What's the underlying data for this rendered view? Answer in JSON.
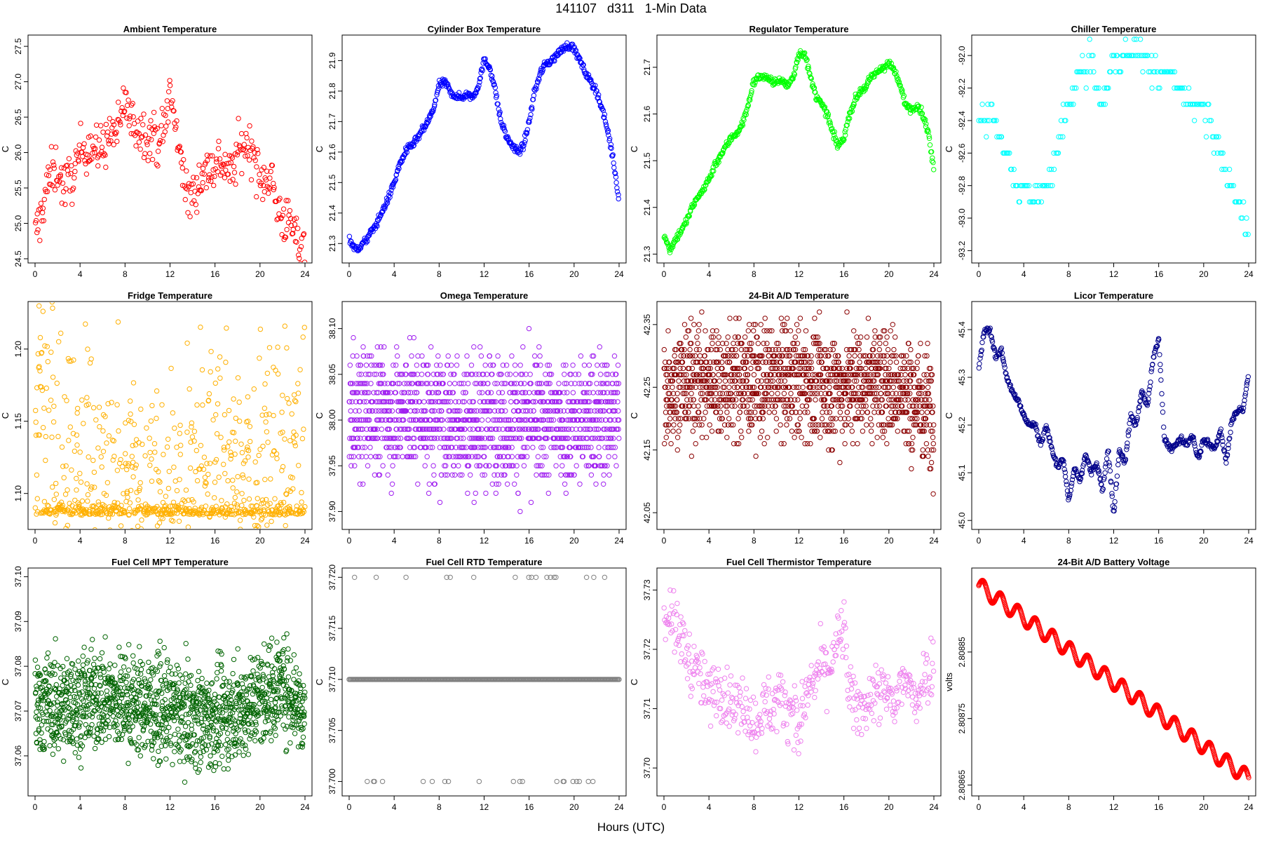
{
  "figure": {
    "suptitle": "141107   d311   1-Min Data",
    "xlabel": "Hours (UTC)"
  },
  "chart_data": [
    {
      "type": "scatter",
      "title": "Ambient Temperature",
      "ylabel": "C",
      "color": "#ff0000",
      "xlim": [
        0,
        24
      ],
      "ylim": [
        24.5,
        27.6
      ],
      "xticks": [
        0,
        4,
        8,
        12,
        16,
        20,
        24
      ],
      "yticks": [
        24.5,
        25.0,
        25.5,
        26.0,
        26.5,
        27.0,
        27.5
      ],
      "x": [
        0,
        0.5,
        1,
        1.5,
        2,
        2.5,
        3,
        3.5,
        4,
        4.5,
        5,
        5.5,
        6,
        6.5,
        7,
        7.5,
        8,
        8.5,
        9,
        9.5,
        10,
        10.5,
        11,
        11.5,
        12,
        12.5,
        13,
        13.5,
        14,
        14.5,
        15,
        15.5,
        16,
        16.5,
        17,
        17.5,
        18,
        18.5,
        19,
        19.5,
        20,
        20.5,
        21,
        21.5,
        22,
        22.5,
        23,
        23.5,
        24
      ],
      "y": [
        24.8,
        25.1,
        25.5,
        25.7,
        25.8,
        25.5,
        25.6,
        25.7,
        26.0,
        26.1,
        26.1,
        26.0,
        26.1,
        26.2,
        26.3,
        26.3,
        26.8,
        26.4,
        26.4,
        26.3,
        26.3,
        26.2,
        26.2,
        26.3,
        26.9,
        26.3,
        26.0,
        25.3,
        25.4,
        25.6,
        25.7,
        25.8,
        25.8,
        25.9,
        25.8,
        25.7,
        26.0,
        26.1,
        26.1,
        26.0,
        25.5,
        25.7,
        25.7,
        25.2,
        25.1,
        25.0,
        24.9,
        24.7,
        24.7
      ],
      "spread": 0.35,
      "n": 8
    },
    {
      "type": "scatter",
      "title": "Cylinder Box Temperature",
      "ylabel": "C",
      "color": "#0000ff",
      "xlim": [
        0,
        24
      ],
      "ylim": [
        21.25,
        21.97
      ],
      "xticks": [
        0,
        4,
        8,
        12,
        16,
        20,
        24
      ],
      "yticks": [
        21.3,
        21.4,
        21.5,
        21.6,
        21.7,
        21.8,
        21.9
      ],
      "x": [
        0,
        0.5,
        1,
        1.5,
        2,
        2.5,
        3,
        3.5,
        4,
        4.5,
        5,
        5.5,
        6,
        6.5,
        7,
        7.5,
        8,
        8.5,
        9,
        9.5,
        10,
        10.5,
        11,
        11.5,
        12,
        12.5,
        13,
        13.5,
        14,
        14.5,
        15,
        15.5,
        16,
        16.5,
        17,
        17.5,
        18,
        18.5,
        19,
        19.5,
        20,
        20.5,
        21,
        21.5,
        22,
        22.5,
        23,
        23.5,
        24
      ],
      "y": [
        21.32,
        21.28,
        21.29,
        21.31,
        21.34,
        21.37,
        21.41,
        21.45,
        21.5,
        21.56,
        21.6,
        21.62,
        21.64,
        21.67,
        21.7,
        21.74,
        21.82,
        21.83,
        21.8,
        21.78,
        21.78,
        21.79,
        21.78,
        21.82,
        21.9,
        21.88,
        21.8,
        21.7,
        21.65,
        21.62,
        21.6,
        21.62,
        21.7,
        21.8,
        21.86,
        21.89,
        21.9,
        21.92,
        21.94,
        21.95,
        21.94,
        21.9,
        21.86,
        21.83,
        21.8,
        21.74,
        21.67,
        21.57,
        21.44
      ],
      "spread": 0.012,
      "n": 10
    },
    {
      "type": "scatter",
      "title": "Regulator Temperature",
      "ylabel": "C",
      "color": "#00ff00",
      "xlim": [
        0,
        24
      ],
      "ylim": [
        21.29,
        21.76
      ],
      "xticks": [
        0,
        4,
        8,
        12,
        16,
        20,
        24
      ],
      "yticks": [
        21.3,
        21.4,
        21.5,
        21.6,
        21.7
      ],
      "x": [
        0,
        0.5,
        1,
        1.5,
        2,
        2.5,
        3,
        3.5,
        4,
        4.5,
        5,
        5.5,
        6,
        6.5,
        7,
        7.5,
        8,
        8.5,
        9,
        9.5,
        10,
        10.5,
        11,
        11.5,
        12,
        12.5,
        13,
        13.5,
        14,
        14.5,
        15,
        15.5,
        16,
        16.5,
        17,
        17.5,
        18,
        18.5,
        19,
        19.5,
        20,
        20.5,
        21,
        21.5,
        22,
        22.5,
        23,
        23.5,
        24
      ],
      "y": [
        21.34,
        21.31,
        21.33,
        21.35,
        21.37,
        21.4,
        21.42,
        21.44,
        21.46,
        21.49,
        21.51,
        21.53,
        21.55,
        21.56,
        21.58,
        21.62,
        21.67,
        21.68,
        21.68,
        21.67,
        21.67,
        21.67,
        21.66,
        21.68,
        21.73,
        21.73,
        21.68,
        21.64,
        21.62,
        21.6,
        21.56,
        21.53,
        21.55,
        21.6,
        21.63,
        21.65,
        21.66,
        21.68,
        21.69,
        21.7,
        21.71,
        21.69,
        21.66,
        21.62,
        21.61,
        21.62,
        21.6,
        21.56,
        21.48
      ],
      "spread": 0.008,
      "n": 10
    },
    {
      "type": "scatter",
      "title": "Chiller Temperature",
      "ylabel": "C",
      "color": "#00ffff",
      "xlim": [
        0,
        24
      ],
      "ylim": [
        -93.25,
        -91.9
      ],
      "xticks": [
        0,
        4,
        8,
        12,
        16,
        20,
        24
      ],
      "yticks": [
        -93.2,
        -93.0,
        -92.8,
        -92.6,
        -92.4,
        -92.2,
        -92.0
      ],
      "x": [
        0,
        0.5,
        1,
        1.5,
        2,
        2.5,
        3,
        3.5,
        4,
        4.5,
        5,
        5.5,
        6,
        6.5,
        7,
        7.5,
        8,
        8.5,
        9,
        9.5,
        10,
        10.5,
        11,
        11.5,
        12,
        12.5,
        13,
        13.5,
        14,
        14.5,
        15,
        15.5,
        16,
        16.5,
        17,
        17.5,
        18,
        18.5,
        19,
        19.5,
        20,
        20.5,
        21,
        21.5,
        22,
        22.5,
        23,
        23.5,
        24
      ],
      "y": [
        -92.4,
        -92.4,
        -92.3,
        -92.4,
        -92.5,
        -92.6,
        -92.7,
        -92.8,
        -92.8,
        -92.9,
        -92.9,
        -92.8,
        -92.8,
        -92.7,
        -92.6,
        -92.4,
        -92.3,
        -92.2,
        -92.1,
        -92.1,
        -92.0,
        -92.2,
        -92.3,
        -92.2,
        -92.0,
        -92.1,
        -92.0,
        -92.0,
        -91.95,
        -92.0,
        -92.1,
        -92.1,
        -92.1,
        -92.1,
        -92.1,
        -92.2,
        -92.2,
        -92.3,
        -92.3,
        -92.3,
        -92.4,
        -92.4,
        -92.5,
        -92.6,
        -92.7,
        -92.8,
        -92.9,
        -93.0,
        -93.1
      ],
      "spread": 0.08,
      "n": 5,
      "quant": 0.1
    },
    {
      "type": "scatter",
      "title": "Fridge Temperature",
      "ylabel": "C",
      "color": "#ffb000",
      "xlim": [
        0,
        24
      ],
      "ylim": [
        1.078,
        1.23
      ],
      "xticks": [
        0,
        4,
        8,
        12,
        16,
        20,
        24
      ],
      "yticks": [
        1.1,
        1.15,
        1.2
      ],
      "x": [
        0,
        0.5,
        1,
        1.5,
        2,
        2.5,
        3,
        3.5,
        4,
        4.5,
        5,
        5.5,
        6,
        6.5,
        7,
        7.5,
        8,
        8.5,
        9,
        9.5,
        10,
        10.5,
        11,
        11.5,
        12,
        12.5,
        13,
        13.5,
        14,
        14.5,
        15,
        15.5,
        16,
        16.5,
        17,
        17.5,
        18,
        18.5,
        19,
        19.5,
        20,
        20.5,
        21,
        21.5,
        22,
        22.5,
        23,
        23.5,
        24
      ],
      "y": [
        1.15,
        1.18,
        1.17,
        1.16,
        1.14,
        1.14,
        1.13,
        1.13,
        1.12,
        1.13,
        1.12,
        1.12,
        1.12,
        1.11,
        1.11,
        1.11,
        1.1,
        1.11,
        1.11,
        1.11,
        1.11,
        1.11,
        1.1,
        1.1,
        1.1,
        1.1,
        1.1,
        1.11,
        1.12,
        1.13,
        1.14,
        1.15,
        1.15,
        1.14,
        1.13,
        1.12,
        1.12,
        1.12,
        1.12,
        1.12,
        1.12,
        1.13,
        1.13,
        1.13,
        1.13,
        1.13,
        1.13,
        1.14,
        1.14
      ],
      "spread": 0.04,
      "n": 18,
      "floor": 1.085
    },
    {
      "type": "scatter",
      "title": "Omega Temperature",
      "ylabel": "C",
      "color": "#a020f0",
      "xlim": [
        0,
        24
      ],
      "ylim": [
        37.885,
        38.125
      ],
      "xticks": [
        0,
        4,
        8,
        12,
        16,
        20,
        24
      ],
      "yticks": [
        37.9,
        37.95,
        38.0,
        38.05,
        38.1
      ],
      "x": [
        0,
        2,
        4,
        6,
        8,
        10,
        12,
        14,
        16,
        18,
        20,
        22,
        24
      ],
      "y": [
        38.01,
        38.01,
        38.01,
        38.01,
        38.0,
        38.0,
        38.0,
        38.0,
        38.0,
        38.0,
        38.0,
        38.0,
        38.01
      ],
      "spread": 0.07,
      "n": 120,
      "quant": 0.01
    },
    {
      "type": "scatter",
      "title": "24-Bit A/D Temperature",
      "ylabel": "C",
      "color": "#8b0000",
      "xlim": [
        0,
        24
      ],
      "ylim": [
        42.03,
        42.38
      ],
      "xticks": [
        0,
        4,
        8,
        12,
        16,
        20,
        24
      ],
      "yticks": [
        42.05,
        42.15,
        42.25,
        42.35
      ],
      "x": [
        0,
        2,
        4,
        6,
        8,
        10,
        12,
        14,
        16,
        18,
        20,
        22,
        24
      ],
      "y": [
        42.25,
        42.26,
        42.26,
        42.26,
        42.26,
        42.26,
        42.26,
        42.25,
        42.25,
        42.26,
        42.26,
        42.23,
        42.22
      ],
      "spread": 0.09,
      "n": 120,
      "quant": 0.01
    },
    {
      "type": "scatter",
      "title": "Licor Temperature",
      "ylabel": "C",
      "color": "#00008b",
      "xlim": [
        0,
        24
      ],
      "ylim": [
        44.99,
        45.45
      ],
      "xticks": [
        0,
        4,
        8,
        12,
        16,
        20,
        24
      ],
      "yticks": [
        45.0,
        45.1,
        45.2,
        45.3,
        45.4
      ],
      "x": [
        0,
        0.5,
        1,
        1.5,
        2,
        2.5,
        3,
        3.5,
        4,
        4.5,
        5,
        5.5,
        6,
        6.5,
        7,
        7.5,
        8,
        8.5,
        9,
        9.5,
        10,
        10.5,
        11,
        11.5,
        12,
        12.5,
        13,
        13.5,
        14,
        14.5,
        15,
        15.5,
        16,
        16.5,
        17,
        17.5,
        18,
        18.5,
        19,
        19.5,
        20,
        20.5,
        21,
        21.5,
        22,
        22.5,
        23,
        23.5,
        24
      ],
      "y": [
        45.32,
        45.4,
        45.4,
        45.34,
        45.36,
        45.3,
        45.27,
        45.25,
        45.22,
        45.2,
        45.2,
        45.16,
        45.2,
        45.15,
        45.11,
        45.13,
        45.04,
        45.11,
        45.08,
        45.14,
        45.1,
        45.12,
        45.06,
        45.15,
        45.01,
        45.15,
        45.12,
        45.22,
        45.2,
        45.27,
        45.24,
        45.34,
        45.38,
        45.17,
        45.15,
        45.16,
        45.17,
        45.16,
        45.18,
        45.13,
        45.17,
        45.16,
        45.15,
        45.19,
        45.12,
        45.21,
        45.23,
        45.23,
        45.31
      ],
      "spread": 0.006,
      "n": 10
    },
    {
      "type": "scatter",
      "title": "Fuel Cell MPT Temperature",
      "ylabel": "C",
      "color": "#006400",
      "xlim": [
        0,
        24
      ],
      "ylim": [
        37.052,
        37.101
      ],
      "xticks": [
        0,
        4,
        8,
        12,
        16,
        20,
        24
      ],
      "yticks": [
        37.06,
        37.07,
        37.08,
        37.09,
        37.1
      ],
      "x": [
        0,
        2,
        4,
        6,
        8,
        10,
        12,
        14,
        16,
        18,
        20,
        22,
        24
      ],
      "y": [
        37.072,
        37.071,
        37.072,
        37.073,
        37.072,
        37.071,
        37.07,
        37.069,
        37.068,
        37.07,
        37.073,
        37.076,
        37.07
      ],
      "spread": 0.011,
      "n": 120
    },
    {
      "type": "scatter",
      "title": "Fuel Cell RTD Temperature",
      "ylabel": "C",
      "color": "#808080",
      "xlim": [
        0,
        24
      ],
      "ylim": [
        37.699,
        37.7205
      ],
      "xticks": [
        0,
        4,
        8,
        12,
        16,
        20,
        24
      ],
      "yticks": [
        37.7,
        37.705,
        37.71,
        37.715,
        37.72
      ],
      "x": [
        0,
        24
      ],
      "y": [
        37.71,
        37.71
      ],
      "levels": [
        37.7,
        37.71,
        37.72
      ],
      "n": 300
    },
    {
      "type": "scatter",
      "title": "Fuel Cell Thermistor Temperature",
      "ylabel": "C",
      "color": "#ee82ee",
      "xlim": [
        0,
        24
      ],
      "ylim": [
        37.696,
        37.733
      ],
      "xticks": [
        0,
        4,
        8,
        12,
        16,
        20,
        24
      ],
      "yticks": [
        37.7,
        37.71,
        37.72,
        37.73
      ],
      "x": [
        0,
        0.5,
        1,
        1.5,
        2,
        2.5,
        3,
        3.5,
        4,
        4.5,
        5,
        5.5,
        6,
        6.5,
        7,
        7.5,
        8,
        8.5,
        9,
        9.5,
        10,
        10.5,
        11,
        11.5,
        12,
        12.5,
        13,
        13.5,
        14,
        14.5,
        15,
        15.5,
        16,
        16.5,
        17,
        17.5,
        18,
        18.5,
        19,
        19.5,
        20,
        20.5,
        21,
        21.5,
        22,
        22.5,
        23,
        23.5,
        24
      ],
      "y": [
        37.724,
        37.727,
        37.723,
        37.722,
        37.72,
        37.717,
        37.716,
        37.714,
        37.712,
        37.713,
        37.714,
        37.712,
        37.712,
        37.71,
        37.711,
        37.71,
        37.707,
        37.709,
        37.711,
        37.71,
        37.711,
        37.712,
        37.71,
        37.711,
        37.705,
        37.712,
        37.713,
        37.715,
        37.718,
        37.716,
        37.719,
        37.721,
        37.724,
        37.712,
        37.71,
        37.71,
        37.711,
        37.712,
        37.713,
        37.712,
        37.712,
        37.71,
        37.714,
        37.715,
        37.712,
        37.712,
        37.715,
        37.716,
        37.719
      ],
      "spread": 0.005,
      "n": 10
    },
    {
      "type": "scatter",
      "title": "24-Bit A/D Battery Voltage",
      "ylabel": "volts",
      "color": "#ff0000",
      "xlim": [
        0,
        24
      ],
      "ylim": [
        2.80864,
        2.80897
      ],
      "xticks": [
        0,
        4,
        8,
        12,
        16,
        20,
        24
      ],
      "yticks": [
        2.80865,
        2.80875,
        2.80885
      ],
      "x": [
        0,
        24
      ],
      "y": [
        2.80895,
        2.80866
      ],
      "wave": 1.2e-05,
      "wave_period": 1.55,
      "n": 600
    }
  ]
}
